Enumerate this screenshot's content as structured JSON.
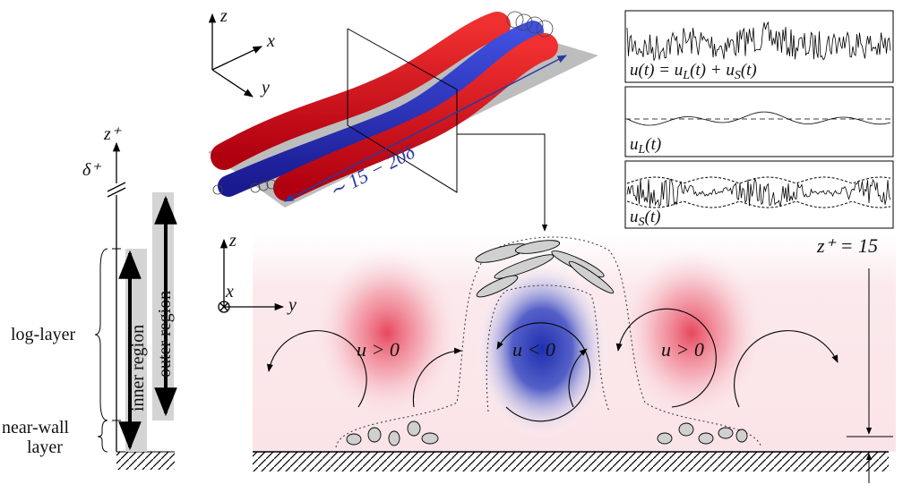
{
  "axes3d": {
    "z": "z",
    "x": "x",
    "y": "y"
  },
  "streaks": {
    "length_label": "∼ 15 − 20δ"
  },
  "signals": {
    "total": [
      "u(t) = u",
      "L",
      "(t) + u",
      "S",
      "(t)"
    ],
    "large": [
      "u",
      "L",
      "(t)"
    ],
    "small": [
      "u",
      "S",
      "(t)"
    ]
  },
  "profile": {
    "axis": "z⁺",
    "delta": "δ⁺",
    "log_layer": "log-layer",
    "near_wall": [
      "near-wall",
      "layer"
    ],
    "inner": "inner region",
    "outer": "outer region"
  },
  "section": {
    "axes": {
      "z": "z",
      "x": "x",
      "y": "y"
    },
    "labels": [
      "u > 0",
      "u < 0",
      "u > 0"
    ],
    "height": "z⁺ = 15"
  }
}
